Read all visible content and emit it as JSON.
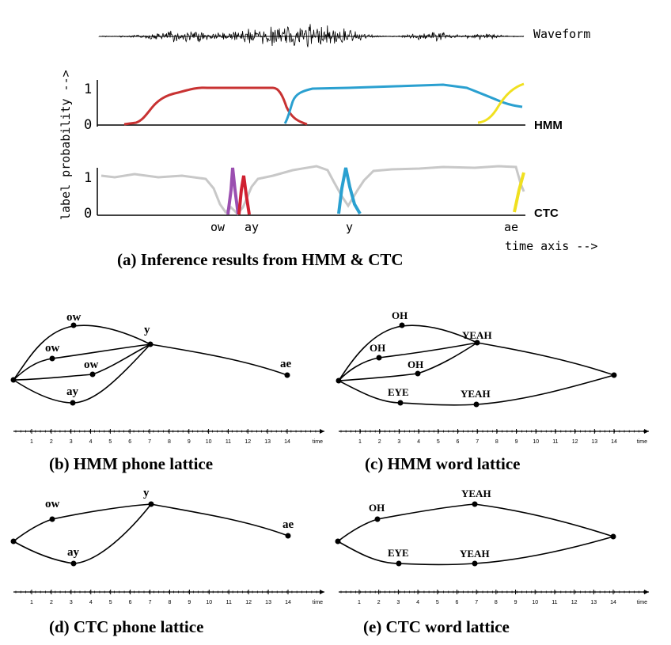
{
  "panel_a": {
    "caption": "(a) Inference results from HMM & CTC",
    "waveform_label": "Waveform",
    "hmm_label": "HMM",
    "ctc_label": "CTC",
    "ylabel": "label probability -->",
    "xlabel": "time axis -->",
    "tick_one": "1",
    "tick_zero": "0",
    "ctc_spike_labels": [
      "ow",
      "ay",
      "y",
      "ae"
    ],
    "colors": {
      "ow": "#9b4fb0",
      "ay": "#d02030",
      "y": "#2aa0d0",
      "ae": "#f0e020",
      "blank": "#c0c0c0",
      "hmm_ow_ay": "#c83232"
    }
  },
  "lattices": {
    "time_label": "time",
    "time_ticks": [
      "1",
      "2",
      "3",
      "4",
      "5",
      "6",
      "7",
      "8",
      "9",
      "10",
      "11",
      "12",
      "13",
      "14"
    ],
    "b": {
      "caption": "(b) HMM phone lattice",
      "node_labels": [
        "ow",
        "ow",
        "ow",
        "ay",
        "y",
        "ae"
      ]
    },
    "c": {
      "caption": "(c) HMM word lattice",
      "node_labels": [
        "OH",
        "OH",
        "OH",
        "EYE",
        "YEAH",
        "YEAH"
      ]
    },
    "d": {
      "caption": "(d) CTC phone lattice",
      "node_labels": [
        "ow",
        "ay",
        "y",
        "ae"
      ]
    },
    "e": {
      "caption": "(e) CTC word lattice",
      "node_labels": [
        "OH",
        "EYE",
        "YEAH",
        "YEAH"
      ]
    }
  }
}
